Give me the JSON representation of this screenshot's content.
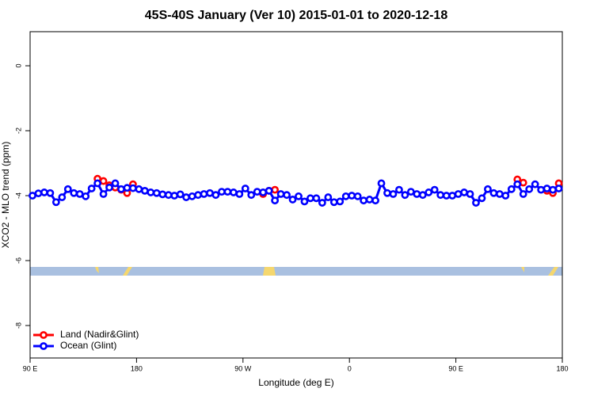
{
  "chart_data": {
    "type": "line",
    "title": "45S-40S January (Ver 10)   2015-01-01 to 2020-12-18",
    "xlabel": "Longitude (deg E)",
    "ylabel": "XCO2 - MLO trend (ppm)",
    "x": [
      92,
      97,
      102,
      107,
      112,
      117,
      122,
      127,
      132,
      137,
      142,
      147,
      152,
      157,
      162,
      167,
      172,
      177,
      182,
      187,
      192,
      197,
      202,
      207,
      212,
      217,
      222,
      227,
      232,
      237,
      242,
      247,
      252,
      257,
      262,
      267,
      272,
      277,
      282,
      287,
      292,
      297,
      302,
      307,
      312,
      317,
      322,
      327,
      332,
      337,
      342,
      347,
      352,
      357,
      362,
      367,
      372,
      377,
      382,
      387,
      392,
      397,
      402,
      407,
      412,
      417,
      422,
      427,
      432,
      437,
      442,
      447,
      452,
      457,
      462,
      467,
      472,
      477,
      482,
      487,
      492,
      497,
      502,
      507,
      512,
      517,
      522,
      527,
      532,
      537
    ],
    "series": [
      {
        "name": "Land (Nadir&Glint)",
        "color": "#ff0000",
        "values": [
          null,
          null,
          null,
          null,
          null,
          null,
          null,
          null,
          null,
          null,
          null,
          -3.48,
          -3.55,
          -3.68,
          -3.75,
          -3.82,
          -3.92,
          -3.65,
          null,
          null,
          null,
          null,
          null,
          null,
          null,
          null,
          null,
          null,
          null,
          null,
          null,
          null,
          null,
          null,
          null,
          null,
          null,
          null,
          null,
          -3.95,
          -3.85,
          -3.82,
          null,
          null,
          null,
          null,
          null,
          null,
          null,
          null,
          null,
          null,
          null,
          null,
          null,
          null,
          null,
          null,
          null,
          null,
          null,
          null,
          null,
          null,
          null,
          null,
          null,
          null,
          null,
          null,
          null,
          null,
          null,
          null,
          null,
          null,
          null,
          null,
          null,
          null,
          null,
          null,
          -3.5,
          -3.6,
          null,
          null,
          null,
          -3.85,
          -3.92,
          -3.62
        ]
      },
      {
        "name": "Ocean (Glint)",
        "color": "#0000ff",
        "values": [
          -4.0,
          -3.93,
          -3.9,
          -3.92,
          -4.2,
          -4.05,
          -3.8,
          -3.92,
          -3.95,
          -4.02,
          -3.78,
          -3.62,
          -3.95,
          -3.75,
          -3.62,
          -3.8,
          -3.76,
          -3.77,
          -3.8,
          -3.85,
          -3.9,
          -3.92,
          -3.96,
          -3.98,
          -4.0,
          -3.96,
          -4.05,
          -4.02,
          -3.98,
          -3.95,
          -3.92,
          -3.98,
          -3.88,
          -3.88,
          -3.9,
          -3.95,
          -3.78,
          -3.98,
          -3.88,
          -3.9,
          -3.85,
          -4.15,
          -3.95,
          -3.98,
          -4.12,
          -4.02,
          -4.18,
          -4.08,
          -4.08,
          -4.22,
          -4.05,
          -4.2,
          -4.18,
          -4.02,
          -4.0,
          -4.02,
          -4.15,
          -4.12,
          -4.15,
          -3.62,
          -3.92,
          -3.95,
          -3.82,
          -3.98,
          -3.88,
          -3.95,
          -3.98,
          -3.9,
          -3.82,
          -3.98,
          -4.0,
          -4.0,
          -3.95,
          -3.9,
          -3.95,
          -4.22,
          -4.08,
          -3.8,
          -3.92,
          -3.95,
          -4.0,
          -3.8,
          -3.65,
          -3.95,
          -3.8,
          -3.65,
          -3.82,
          -3.78,
          -3.82,
          -3.78
        ]
      }
    ],
    "xlim": [
      90,
      540
    ],
    "xticks": [
      {
        "value": 90,
        "label": "90 E"
      },
      180,
      {
        "value": 270,
        "label": "90 W"
      },
      {
        "value": 360,
        "label": "0"
      },
      {
        "value": 450,
        "label": "90 E"
      },
      {
        "value": 540,
        "label": "180"
      }
    ],
    "ylim": [
      -9,
      1.05
    ],
    "yticks": [
      0,
      -2,
      -4,
      -6,
      -8
    ],
    "legend": "bottomleft"
  }
}
